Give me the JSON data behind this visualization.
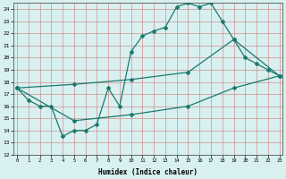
{
  "line1_x": [
    0,
    1,
    2,
    3,
    4,
    5,
    6,
    7,
    8,
    9,
    10,
    11,
    12,
    13,
    14,
    15,
    16,
    17,
    18,
    19,
    20,
    21,
    22,
    23
  ],
  "line1_y": [
    17.5,
    16.5,
    16.0,
    16.0,
    13.5,
    14.0,
    14.0,
    14.5,
    17.5,
    16.0,
    20.5,
    21.8,
    22.2,
    22.5,
    24.2,
    24.5,
    24.2,
    24.5,
    23.0,
    21.5,
    20.0,
    19.5,
    19.0,
    18.5
  ],
  "line2_x": [
    0,
    5,
    10,
    15,
    19,
    23
  ],
  "line2_y": [
    17.5,
    17.8,
    18.2,
    18.8,
    21.5,
    18.5
  ],
  "line3_x": [
    0,
    5,
    10,
    15,
    19,
    23
  ],
  "line3_y": [
    17.5,
    14.8,
    15.3,
    16.0,
    17.5,
    18.5
  ],
  "line_color": "#1a7a6e",
  "bg_color": "#d8f0f0",
  "grid_color": "#d09090",
  "xlim": [
    -0.3,
    23.3
  ],
  "ylim": [
    12,
    24.5
  ],
  "yticks": [
    12,
    13,
    14,
    15,
    16,
    17,
    18,
    19,
    20,
    21,
    22,
    23,
    24
  ],
  "xticks": [
    0,
    1,
    2,
    3,
    4,
    5,
    6,
    7,
    8,
    9,
    10,
    11,
    12,
    13,
    14,
    15,
    16,
    17,
    18,
    19,
    20,
    21,
    22,
    23
  ],
  "xlabel": "Humidex (Indice chaleur)",
  "marker": "D",
  "marker_size": 2.0,
  "linewidth": 0.9
}
